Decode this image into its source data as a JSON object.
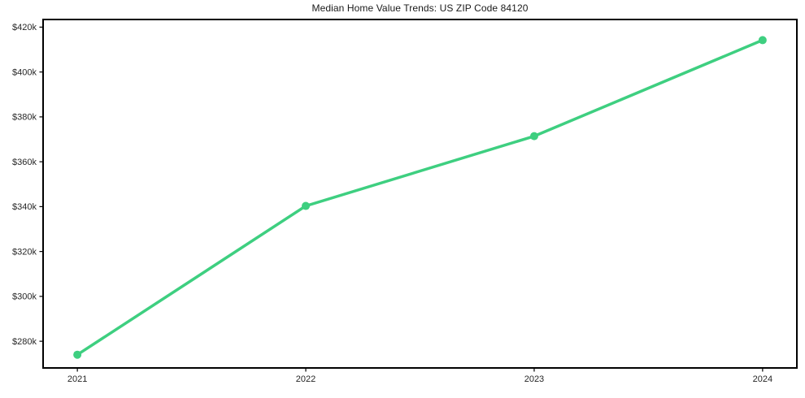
{
  "figure": {
    "title": "Median Home Value Trends: US ZIP Code 84120"
  },
  "chart_data": {
    "type": "line",
    "title": "Median Home Value Trends: US ZIP Code 84120",
    "x": [
      2021,
      2022,
      2023,
      2024
    ],
    "x_tick_labels": [
      "2021",
      "2022",
      "2023",
      "2024"
    ],
    "series": [
      {
        "values": [
          274000,
          340300,
          371400,
          414200
        ]
      }
    ],
    "y_ticks": [
      280000,
      300000,
      320000,
      340000,
      360000,
      380000,
      400000,
      420000
    ],
    "y_tick_labels": [
      "$280k",
      "$300k",
      "$320k",
      "$340k",
      "$360k",
      "$380k",
      "$400k",
      "$420k"
    ],
    "xlim": [
      2020.85,
      2024.15
    ],
    "ylim": [
      268100,
      423400
    ],
    "grid": false,
    "legend": "none",
    "marker": "circle",
    "line_width": 3.5,
    "marker_radius": 5,
    "colors": {
      "line": "#3ecf80",
      "marker": "#3ecf80",
      "axis": "#000000",
      "text": "#262626",
      "background": "#ffffff"
    }
  }
}
